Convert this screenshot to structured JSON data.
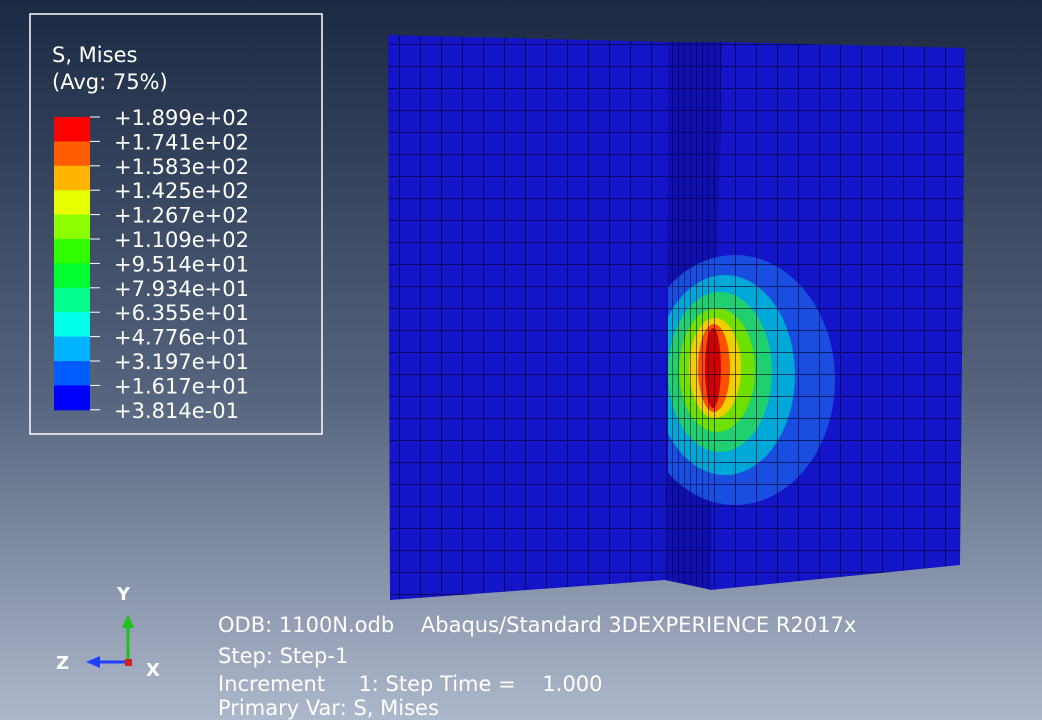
{
  "legend": {
    "title": "S, Mises",
    "subtitle": "(Avg: 75%)",
    "labels": [
      "+1.899e+02",
      "+1.741e+02",
      "+1.583e+02",
      "+1.425e+02",
      "+1.267e+02",
      "+1.109e+02",
      "+9.514e+01",
      "+7.934e+01",
      "+6.355e+01",
      "+4.776e+01",
      "+3.197e+01",
      "+1.617e+01",
      "+3.814e-01"
    ],
    "colors": [
      "#ff0000",
      "#ff5d00",
      "#ffb400",
      "#e8ff00",
      "#8cff00",
      "#30ff00",
      "#00ff30",
      "#00ff8c",
      "#00ffe8",
      "#00b4ff",
      "#005dff",
      "#0000ff"
    ]
  },
  "info": {
    "odb": "ODB: 1100N.odb    Abaqus/Standard 3DEXPERIENCE R2017x",
    "step": "Step: Step-1",
    "increment": "Increment     1: Step Time =    1.000",
    "primary_var": "Primary Var: S, Mises"
  },
  "triad": {
    "y": "Y",
    "z": "Z",
    "x": "X"
  }
}
